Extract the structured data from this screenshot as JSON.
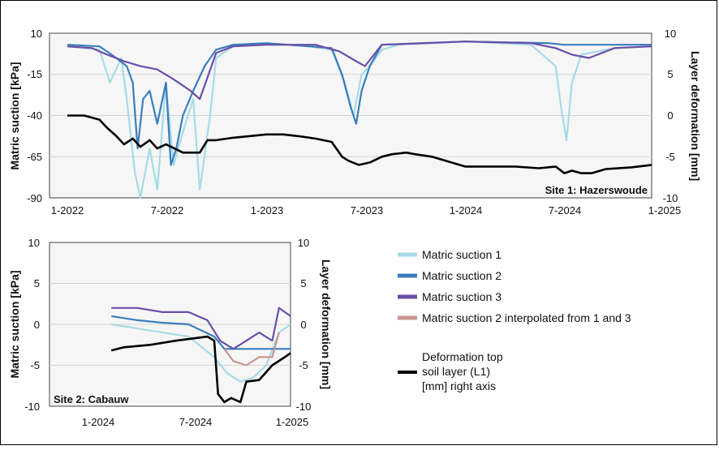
{
  "chart_data": [
    {
      "type": "line",
      "title": "Site 1: Hazerswoude",
      "ylabel": "Matric suction [kPa]",
      "y2label": "Layer deformation [mm]",
      "xlim": [
        "2022-01-01",
        "2025-01-01"
      ],
      "ylim": [
        -90,
        10
      ],
      "y2lim": [
        -10,
        10
      ],
      "xticks": [
        "1-2022",
        "7-2022",
        "1-2023",
        "7-2023",
        "1-2024",
        "7-2024",
        "1-2025"
      ],
      "yticks": [
        "10",
        "-15",
        "-40",
        "-65",
        "-90"
      ],
      "y2ticks": [
        "10",
        "5",
        "0",
        "-5",
        "-10"
      ],
      "grid": "horizontal",
      "series": [
        {
          "name": "Matric suction 1",
          "color": "#a6dbe8",
          "axis": "left",
          "x": [
            "2022-01-01",
            "2022-02-01",
            "2022-03-01",
            "2022-03-20",
            "2022-04-10",
            "2022-04-20",
            "2022-05-05",
            "2022-05-15",
            "2022-06-01",
            "2022-06-15",
            "2022-07-01",
            "2022-07-15",
            "2022-08-01",
            "2022-08-20",
            "2022-09-01",
            "2022-09-20",
            "2022-10-01",
            "2022-11-01",
            "2023-01-01",
            "2023-03-01",
            "2023-05-01",
            "2023-05-25",
            "2023-06-10",
            "2023-06-25",
            "2023-07-10",
            "2023-08-01",
            "2023-09-01",
            "2024-01-01",
            "2024-05-01",
            "2024-06-15",
            "2024-06-25",
            "2024-07-05",
            "2024-07-15",
            "2024-08-01",
            "2024-10-01",
            "2025-01-01"
          ],
          "y": [
            2,
            1,
            0,
            -20,
            -5,
            -30,
            -75,
            -90,
            -60,
            -85,
            -20,
            -70,
            -50,
            -30,
            -85,
            -40,
            -5,
            2,
            3,
            3,
            0,
            -20,
            -40,
            -15,
            -10,
            0,
            3,
            5,
            3,
            -10,
            -35,
            -55,
            -20,
            -3,
            1,
            2
          ]
        },
        {
          "name": "Matric suction 2",
          "color": "#3a7ebc",
          "axis": "left",
          "x": [
            "2022-01-01",
            "2022-03-01",
            "2022-04-01",
            "2022-04-20",
            "2022-05-01",
            "2022-05-10",
            "2022-05-20",
            "2022-06-01",
            "2022-06-15",
            "2022-07-01",
            "2022-07-10",
            "2022-07-20",
            "2022-08-01",
            "2022-08-20",
            "2022-09-10",
            "2022-10-01",
            "2022-11-01",
            "2023-01-01",
            "2023-05-01",
            "2023-05-20",
            "2023-06-05",
            "2023-06-15",
            "2023-06-25",
            "2023-07-10",
            "2023-08-01",
            "2024-01-01",
            "2024-06-01",
            "2024-07-01",
            "2025-01-01"
          ],
          "y": [
            3,
            2,
            -5,
            -10,
            -20,
            -60,
            -30,
            -25,
            -45,
            -20,
            -70,
            -60,
            -40,
            -25,
            -10,
            0,
            3,
            4,
            1,
            -15,
            -35,
            -45,
            -25,
            -10,
            3,
            5,
            4,
            3,
            3
          ]
        },
        {
          "name": "Matric suction 3",
          "color": "#6a4fa8",
          "axis": "left",
          "x": [
            "2022-01-01",
            "2022-02-15",
            "2022-03-15",
            "2022-04-15",
            "2022-05-15",
            "2022-06-15",
            "2022-07-15",
            "2022-08-15",
            "2022-09-01",
            "2022-10-01",
            "2022-11-01",
            "2023-01-01",
            "2023-04-01",
            "2023-05-15",
            "2023-06-15",
            "2023-07-01",
            "2023-08-01",
            "2024-01-01",
            "2024-05-01",
            "2024-06-15",
            "2024-07-15",
            "2024-08-15",
            "2024-10-01",
            "2025-01-01"
          ],
          "y": [
            2,
            1,
            -3,
            -7,
            -10,
            -12,
            -18,
            -25,
            -30,
            -2,
            2,
            3,
            3,
            -1,
            -7,
            -10,
            3,
            5,
            4,
            1,
            -3,
            -5,
            1,
            2
          ]
        },
        {
          "name": "Deformation top soil layer (L1) [mm] right axis",
          "color": "#000000",
          "axis": "right",
          "x": [
            "2022-01-01",
            "2022-02-01",
            "2022-03-01",
            "2022-03-15",
            "2022-04-01",
            "2022-04-15",
            "2022-05-01",
            "2022-05-15",
            "2022-06-01",
            "2022-06-15",
            "2022-07-01",
            "2022-08-01",
            "2022-09-01",
            "2022-09-15",
            "2022-10-01",
            "2022-11-01",
            "2022-12-01",
            "2023-01-01",
            "2023-02-01",
            "2023-03-01",
            "2023-04-01",
            "2023-05-01",
            "2023-05-20",
            "2023-06-01",
            "2023-06-20",
            "2023-07-10",
            "2023-08-01",
            "2023-08-20",
            "2023-09-15",
            "2023-10-01",
            "2023-11-01",
            "2024-01-01",
            "2024-04-01",
            "2024-05-15",
            "2024-06-15",
            "2024-07-01",
            "2024-07-15",
            "2024-08-01",
            "2024-08-20",
            "2024-09-15",
            "2024-11-01",
            "2025-01-01"
          ],
          "y": [
            0,
            0,
            -0.5,
            -1.5,
            -2.5,
            -3.5,
            -2.8,
            -3.8,
            -3,
            -4,
            -3.5,
            -4.5,
            -4.5,
            -3,
            -3,
            -2.7,
            -2.5,
            -2.3,
            -2.3,
            -2.5,
            -2.8,
            -3.2,
            -5,
            -5.5,
            -6,
            -5.7,
            -5,
            -4.7,
            -4.5,
            -4.7,
            -5,
            -6.2,
            -6.2,
            -6.4,
            -6.2,
            -7,
            -6.7,
            -7,
            -7,
            -6.5,
            -6.3,
            -6
          ]
        }
      ]
    },
    {
      "type": "line",
      "title": "Site 2: Cabauw",
      "ylabel": "Matric suction [kPa]",
      "y2label": "Layer deformation [mm]",
      "xlim": [
        "2023-10-01",
        "2025-01-01"
      ],
      "ylim": [
        -10,
        10
      ],
      "y2lim": [
        -10,
        10
      ],
      "xticks": [
        "1-2024",
        "7-2024",
        "1-2025"
      ],
      "yticks": [
        "10",
        "5",
        "0",
        "-5",
        "-10"
      ],
      "y2ticks": [
        "10",
        "5",
        "0",
        "-5",
        "-10"
      ],
      "grid": "horizontal",
      "series": [
        {
          "name": "Matric suction 1",
          "color": "#a6dbe8",
          "axis": "left",
          "x": [
            "2023-11-01",
            "2024-01-01",
            "2024-03-01",
            "2024-05-01",
            "2024-07-01",
            "2024-08-01",
            "2024-09-01",
            "2024-10-01",
            "2024-11-01",
            "2024-12-01",
            "2025-01-01"
          ],
          "y": [
            0,
            -0.5,
            -1,
            -1.5,
            -4,
            -6,
            -7,
            -6.5,
            -5,
            -1,
            0
          ]
        },
        {
          "name": "Matric suction 2",
          "color": "#3a7ebc",
          "axis": "left",
          "x": [
            "2023-11-01",
            "2024-01-01",
            "2024-03-01",
            "2024-05-01",
            "2024-07-01",
            "2024-07-25",
            "2025-01-01"
          ],
          "y": [
            1,
            0.5,
            0.2,
            0,
            -1.5,
            -3,
            -3
          ]
        },
        {
          "name": "Matric suction 3",
          "color": "#6a4fa8",
          "axis": "left",
          "x": [
            "2023-11-01",
            "2024-01-01",
            "2024-03-01",
            "2024-05-01",
            "2024-06-15",
            "2024-07-15",
            "2024-08-15",
            "2024-09-15",
            "2024-10-15",
            "2024-11-15",
            "2024-12-01",
            "2025-01-01"
          ],
          "y": [
            2,
            2,
            1.5,
            1.5,
            0.5,
            -2,
            -3,
            -2,
            -1,
            -2,
            2,
            1
          ]
        },
        {
          "name": "Matric suction 2 interpolated from 1 and 3",
          "color": "#c9968f",
          "axis": "left",
          "x": [
            "2024-07-25",
            "2024-08-15",
            "2024-09-15",
            "2024-10-15",
            "2024-11-15",
            "2024-12-01"
          ],
          "y": [
            -3,
            -4.5,
            -5,
            -4,
            -4,
            -1
          ]
        },
        {
          "name": "Deformation top soil layer (L1) [mm] right axis",
          "color": "#000000",
          "axis": "right",
          "x": [
            "2023-11-01",
            "2023-12-01",
            "2024-02-01",
            "2024-04-01",
            "2024-06-15",
            "2024-07-01",
            "2024-07-10",
            "2024-07-25",
            "2024-08-10",
            "2024-09-01",
            "2024-09-15",
            "2024-10-15",
            "2024-11-15",
            "2024-12-15",
            "2025-01-01"
          ],
          "y": [
            -3.2,
            -2.8,
            -2.5,
            -2,
            -1.5,
            -2,
            -8.5,
            -9.5,
            -9,
            -9.5,
            -7,
            -6.8,
            -5,
            -4,
            -3.5
          ]
        }
      ]
    }
  ],
  "legend": {
    "items": [
      {
        "label": "Matric suction 1",
        "color": "#a6dbe8"
      },
      {
        "label": "Matric suction 2",
        "color": "#3a7ebc"
      },
      {
        "label": "Matric suction 3",
        "color": "#6a4fa8"
      },
      {
        "label": "Matric suction 2 interpolated from 1 and 3",
        "color": "#c9968f"
      }
    ],
    "deformation_lines": [
      "Deformation top",
      "soil layer (L1)",
      "[mm] right axis"
    ],
    "deformation_color": "#000000"
  }
}
